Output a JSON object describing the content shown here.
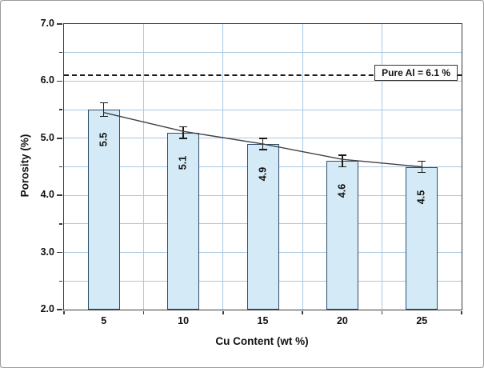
{
  "chart_data": {
    "type": "bar",
    "categories": [
      "5",
      "10",
      "15",
      "20",
      "25"
    ],
    "values": [
      5.5,
      5.1,
      4.9,
      4.6,
      4.5
    ],
    "value_labels": [
      "5.5",
      "5.1",
      "4.9",
      "4.6",
      "4.5"
    ],
    "error_bars": [
      0.12,
      0.1,
      0.1,
      0.1,
      0.1
    ],
    "trend_line_values": [
      5.45,
      5.12,
      4.9,
      4.63,
      4.5
    ],
    "title": "",
    "xlabel": "Cu Content (wt %)",
    "ylabel": "Porosity (%)",
    "ylim": [
      2.0,
      7.0
    ],
    "ytick_values": [
      2,
      3,
      4,
      5,
      6,
      7
    ],
    "ytick_labels": [
      "2.0",
      "3.0",
      "4.0",
      "5.0",
      "6.0",
      "7.0"
    ],
    "gridline_step": 0.5,
    "grid": true,
    "legend_position": "none",
    "reference_line": {
      "value": 6.1,
      "label": "Pure Al = 6.1 %"
    },
    "colors": {
      "bar_fill": "#d4eaf6",
      "bar_border": "#2e4d6b",
      "grid": "#a8c9e4",
      "axis": "#3a3a3a",
      "trend": "#404040",
      "reference": "#1a1a1a",
      "text": "#111111"
    }
  }
}
